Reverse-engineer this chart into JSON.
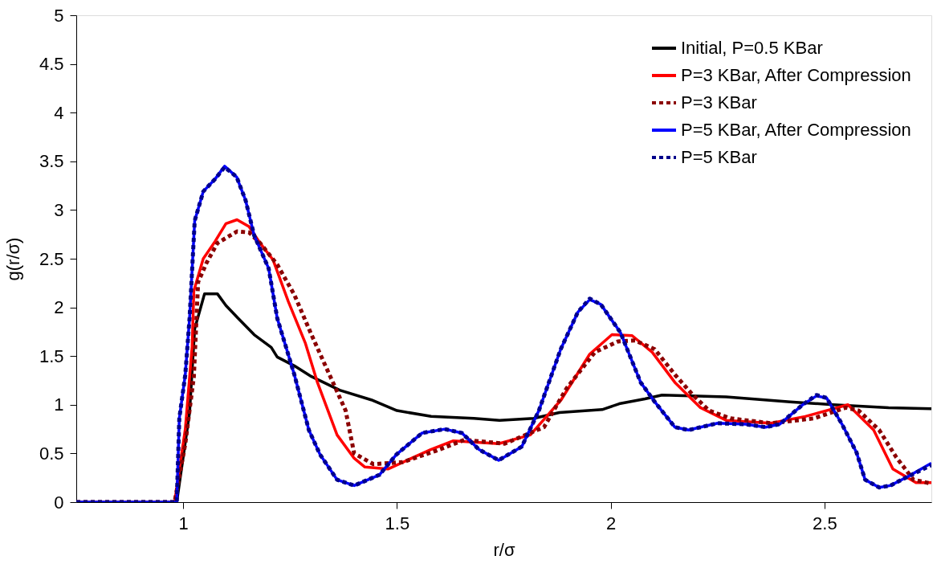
{
  "chart_data": {
    "type": "line",
    "xlabel": "r/σ",
    "ylabel": "g(r/σ)",
    "xlim": [
      0.75,
      2.75
    ],
    "xticks": [
      1,
      1.5,
      2,
      2.5
    ],
    "ylim": [
      0,
      5
    ],
    "yticks": [
      0,
      0.5,
      1,
      1.5,
      2,
      2.5,
      3,
      3.5,
      4,
      4.5,
      5
    ],
    "grid": false,
    "legend": "top right",
    "marker": "none",
    "series": [
      {
        "name": "Initial, P=0.5 KBar",
        "color": "#000000",
        "line_style": "solid",
        "x": [
          0.75,
          0.985,
          1.015,
          1.027,
          1.05,
          1.08,
          1.1,
          1.126,
          1.166,
          1.206,
          1.22,
          1.26,
          1.3,
          1.366,
          1.44,
          1.5,
          1.58,
          1.68,
          1.74,
          1.82,
          1.88,
          1.98,
          2.02,
          2.08,
          2.12,
          2.27,
          2.42,
          2.52,
          2.65,
          2.75
        ],
        "values": [
          0,
          0,
          0.92,
          1.78,
          2.14,
          2.14,
          2.02,
          1.9,
          1.72,
          1.59,
          1.49,
          1.4,
          1.29,
          1.15,
          1.05,
          0.94,
          0.88,
          0.86,
          0.84,
          0.86,
          0.92,
          0.95,
          1.01,
          1.06,
          1.1,
          1.08,
          1.03,
          1.0,
          0.97,
          0.96
        ]
      },
      {
        "name": "P=3 KBar, After Compression",
        "color": "#ff0000",
        "line_style": "solid",
        "x": [
          0.75,
          0.98,
          1.005,
          1.021,
          1.025,
          1.047,
          1.075,
          1.1,
          1.126,
          1.154,
          1.18,
          1.21,
          1.246,
          1.286,
          1.314,
          1.36,
          1.4,
          1.425,
          1.479,
          1.579,
          1.632,
          1.738,
          1.812,
          1.884,
          1.951,
          2.003,
          2.05,
          2.097,
          2.15,
          2.21,
          2.27,
          2.375,
          2.455,
          2.555,
          2.615,
          2.66,
          2.714,
          2.75
        ],
        "values": [
          0,
          0,
          0.75,
          1.6,
          2.17,
          2.5,
          2.68,
          2.86,
          2.9,
          2.83,
          2.66,
          2.49,
          2.06,
          1.63,
          1.23,
          0.69,
          0.45,
          0.36,
          0.34,
          0.54,
          0.63,
          0.6,
          0.69,
          1.05,
          1.52,
          1.72,
          1.71,
          1.54,
          1.23,
          0.97,
          0.84,
          0.81,
          0.88,
          1.0,
          0.74,
          0.34,
          0.2,
          0.2
        ]
      },
      {
        "name": "P=3 KBar",
        "color": "#8b0000",
        "line_style": "dotted",
        "x": [
          0.75,
          0.98,
          1.005,
          1.025,
          1.035,
          1.055,
          1.08,
          1.126,
          1.154,
          1.18,
          1.22,
          1.26,
          1.3,
          1.34,
          1.38,
          1.4,
          1.445,
          1.513,
          1.593,
          1.658,
          1.752,
          1.844,
          1.897,
          1.963,
          2.017,
          2.057,
          2.103,
          2.15,
          2.19,
          2.23,
          2.28,
          2.375,
          2.475,
          2.55,
          2.58,
          2.628,
          2.668,
          2.708,
          2.75
        ],
        "values": [
          0,
          0,
          0.6,
          1.29,
          2.26,
          2.46,
          2.66,
          2.78,
          2.77,
          2.66,
          2.44,
          2.13,
          1.72,
          1.33,
          0.94,
          0.5,
          0.39,
          0.41,
          0.53,
          0.64,
          0.6,
          0.77,
          1.17,
          1.54,
          1.65,
          1.66,
          1.57,
          1.31,
          1.11,
          0.94,
          0.86,
          0.81,
          0.86,
          0.97,
          0.94,
          0.74,
          0.46,
          0.23,
          0.19
        ]
      },
      {
        "name": "P=5 KBar, After Compression",
        "color": "#0000ff",
        "line_style": "solid",
        "x": [
          0.75,
          0.985,
          0.991,
          1.005,
          1.015,
          1.027,
          1.047,
          1.075,
          1.097,
          1.125,
          1.146,
          1.166,
          1.2,
          1.22,
          1.26,
          1.294,
          1.32,
          1.36,
          1.4,
          1.459,
          1.499,
          1.559,
          1.612,
          1.652,
          1.692,
          1.738,
          1.792,
          1.832,
          1.883,
          1.923,
          1.951,
          1.977,
          2.023,
          2.07,
          2.103,
          2.15,
          2.182,
          2.25,
          2.316,
          2.362,
          2.395,
          2.449,
          2.481,
          2.505,
          2.541,
          2.575,
          2.595,
          2.628,
          2.654,
          2.694,
          2.75
        ],
        "values": [
          0,
          0,
          0.86,
          1.31,
          1.89,
          2.89,
          3.19,
          3.32,
          3.45,
          3.34,
          3.1,
          2.74,
          2.4,
          1.89,
          1.31,
          0.74,
          0.49,
          0.23,
          0.17,
          0.28,
          0.49,
          0.71,
          0.75,
          0.71,
          0.54,
          0.43,
          0.57,
          0.94,
          1.57,
          1.95,
          2.08,
          2.03,
          1.74,
          1.23,
          1.03,
          0.77,
          0.74,
          0.81,
          0.8,
          0.77,
          0.8,
          1.0,
          1.09,
          1.07,
          0.8,
          0.51,
          0.23,
          0.15,
          0.17,
          0.26,
          0.4
        ]
      },
      {
        "name": "P=5 KBar",
        "color": "#00008b",
        "line_style": "dotted",
        "x": [
          0.75,
          0.985,
          0.991,
          1.005,
          1.015,
          1.027,
          1.047,
          1.075,
          1.097,
          1.125,
          1.146,
          1.166,
          1.2,
          1.22,
          1.26,
          1.294,
          1.32,
          1.36,
          1.4,
          1.459,
          1.499,
          1.559,
          1.612,
          1.652,
          1.692,
          1.738,
          1.792,
          1.832,
          1.883,
          1.923,
          1.951,
          1.977,
          2.023,
          2.07,
          2.103,
          2.15,
          2.182,
          2.25,
          2.316,
          2.362,
          2.395,
          2.449,
          2.481,
          2.505,
          2.541,
          2.575,
          2.595,
          2.628,
          2.654,
          2.694,
          2.75
        ],
        "values": [
          0,
          0,
          0.86,
          1.31,
          1.89,
          2.89,
          3.19,
          3.32,
          3.44,
          3.34,
          3.1,
          2.74,
          2.4,
          1.89,
          1.31,
          0.74,
          0.49,
          0.23,
          0.17,
          0.28,
          0.49,
          0.71,
          0.75,
          0.71,
          0.54,
          0.43,
          0.57,
          0.94,
          1.57,
          1.95,
          2.09,
          2.03,
          1.74,
          1.23,
          1.03,
          0.77,
          0.74,
          0.81,
          0.8,
          0.77,
          0.8,
          1.0,
          1.1,
          1.07,
          0.8,
          0.51,
          0.23,
          0.15,
          0.17,
          0.26,
          0.38
        ]
      }
    ]
  }
}
